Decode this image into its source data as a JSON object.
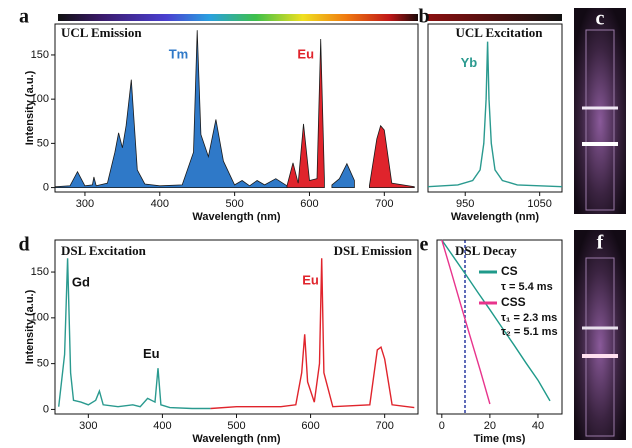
{
  "chart_data": [
    {
      "type": "area",
      "label": "a",
      "title": "UCL Emission",
      "x": [
        260,
        280,
        290,
        300,
        310,
        312,
        315,
        330,
        340,
        345,
        350,
        355,
        362,
        370,
        380,
        400,
        430,
        445,
        450,
        455,
        465,
        475,
        485,
        500,
        510,
        520,
        530,
        540,
        555,
        570,
        578,
        585,
        592,
        600,
        610,
        615,
        620,
        630,
        640,
        650,
        660,
        680,
        690,
        695,
        700,
        710,
        740
      ],
      "series": [
        {
          "name": "Tm",
          "color": "#2f79c8",
          "values": [
            1,
            2,
            18,
            2,
            3,
            12,
            2,
            5,
            40,
            62,
            45,
            70,
            122,
            20,
            4,
            2,
            3,
            40,
            178,
            60,
            35,
            77,
            30,
            3,
            8,
            2,
            8,
            3,
            10,
            2,
            null,
            null,
            null,
            null,
            null,
            null,
            null,
            3,
            10,
            27,
            8,
            null,
            null,
            null,
            null,
            null,
            null
          ]
        },
        {
          "name": "Eu",
          "color": "#e0242c",
          "values": [
            null,
            null,
            null,
            null,
            null,
            null,
            null,
            null,
            null,
            null,
            null,
            null,
            null,
            null,
            null,
            null,
            null,
            null,
            null,
            null,
            null,
            null,
            null,
            null,
            null,
            null,
            null,
            null,
            null,
            2,
            28,
            5,
            72,
            8,
            10,
            168,
            10,
            null,
            null,
            null,
            null,
            2,
            55,
            70,
            65,
            5,
            1
          ]
        }
      ],
      "xlabel": "Wavelength (nm)",
      "ylabel": "Intensity (a.u.)",
      "xlim": [
        260,
        745
      ],
      "ylim": [
        -5,
        185
      ],
      "xticks": [
        300,
        400,
        500,
        600,
        700
      ],
      "yticks": [
        0,
        50,
        100,
        150
      ]
    },
    {
      "type": "line",
      "label": "b",
      "title": "UCL Excitation",
      "x": [
        900,
        940,
        960,
        970,
        975,
        978,
        980,
        982,
        985,
        990,
        1000,
        1020,
        1080
      ],
      "series": [
        {
          "name": "Yb",
          "color": "#2a9a8f",
          "values": [
            1,
            3,
            8,
            20,
            50,
            100,
            165,
            100,
            50,
            20,
            8,
            3,
            1
          ]
        }
      ],
      "xlabel": "Wavelength (nm)",
      "xlim": [
        900,
        1080
      ],
      "ylim": [
        -5,
        185
      ],
      "xticks": [
        950,
        1050
      ]
    },
    {
      "type": "line",
      "label": "d",
      "series": [
        {
          "name": "DSL Excitation",
          "color": "#2a9a8f",
          "x": [
            260,
            268,
            272,
            276,
            280,
            290,
            300,
            310,
            315,
            320,
            340,
            360,
            370,
            380,
            390,
            394,
            398,
            410,
            440,
            465
          ],
          "values": [
            3,
            60,
            165,
            40,
            10,
            8,
            5,
            10,
            20,
            5,
            3,
            5,
            3,
            12,
            8,
            45,
            5,
            2,
            1,
            1
          ]
        },
        {
          "name": "DSL Emission",
          "color": "#e0242c",
          "x": [
            465,
            500,
            530,
            560,
            580,
            588,
            592,
            596,
            605,
            612,
            615,
            618,
            630,
            680,
            690,
            695,
            700,
            710,
            740
          ],
          "values": [
            1,
            3,
            3,
            3,
            5,
            40,
            82,
            30,
            8,
            50,
            165,
            40,
            3,
            5,
            65,
            68,
            55,
            5,
            2
          ]
        }
      ],
      "annotations": [
        "Gd",
        "Eu",
        "Eu"
      ],
      "xlabel": "Wavelength (nm)",
      "ylabel": "Intensity (a.u.)",
      "xlim": [
        255,
        745
      ],
      "ylim": [
        -5,
        185
      ],
      "xticks": [
        300,
        400,
        500,
        600,
        700
      ],
      "yticks": [
        0,
        50,
        100,
        150
      ]
    },
    {
      "type": "line",
      "label": "e",
      "title": "DSL Decay",
      "log_y": true,
      "series": [
        {
          "name": "CS",
          "color": "#1f9a8a",
          "x": [
            0,
            5,
            10,
            15,
            20,
            25,
            30,
            35,
            40,
            45
          ],
          "values": [
            1,
            0.4,
            0.16,
            0.062,
            0.025,
            0.0098,
            0.0039,
            0.0015,
            0.0006,
            0.0002
          ],
          "lifetimes": [
            "τ = 5.4 ms"
          ]
        },
        {
          "name": "CSS",
          "color": "#e8348c",
          "x": [
            0,
            4,
            8,
            12,
            16,
            20
          ],
          "values": [
            1,
            0.18,
            0.031,
            0.0055,
            0.001,
            0.00017
          ],
          "lifetimes": [
            "τ₁ = 2.3 ms",
            "τ₂ = 5.1 ms"
          ]
        }
      ],
      "xlabel": "Time (ms)",
      "xlim": [
        -2,
        50
      ],
      "ylim": [
        0.0001,
        1
      ],
      "xticks": [
        0,
        20,
        40
      ]
    }
  ],
  "photos": [
    {
      "label": "c"
    },
    {
      "label": "f"
    }
  ]
}
